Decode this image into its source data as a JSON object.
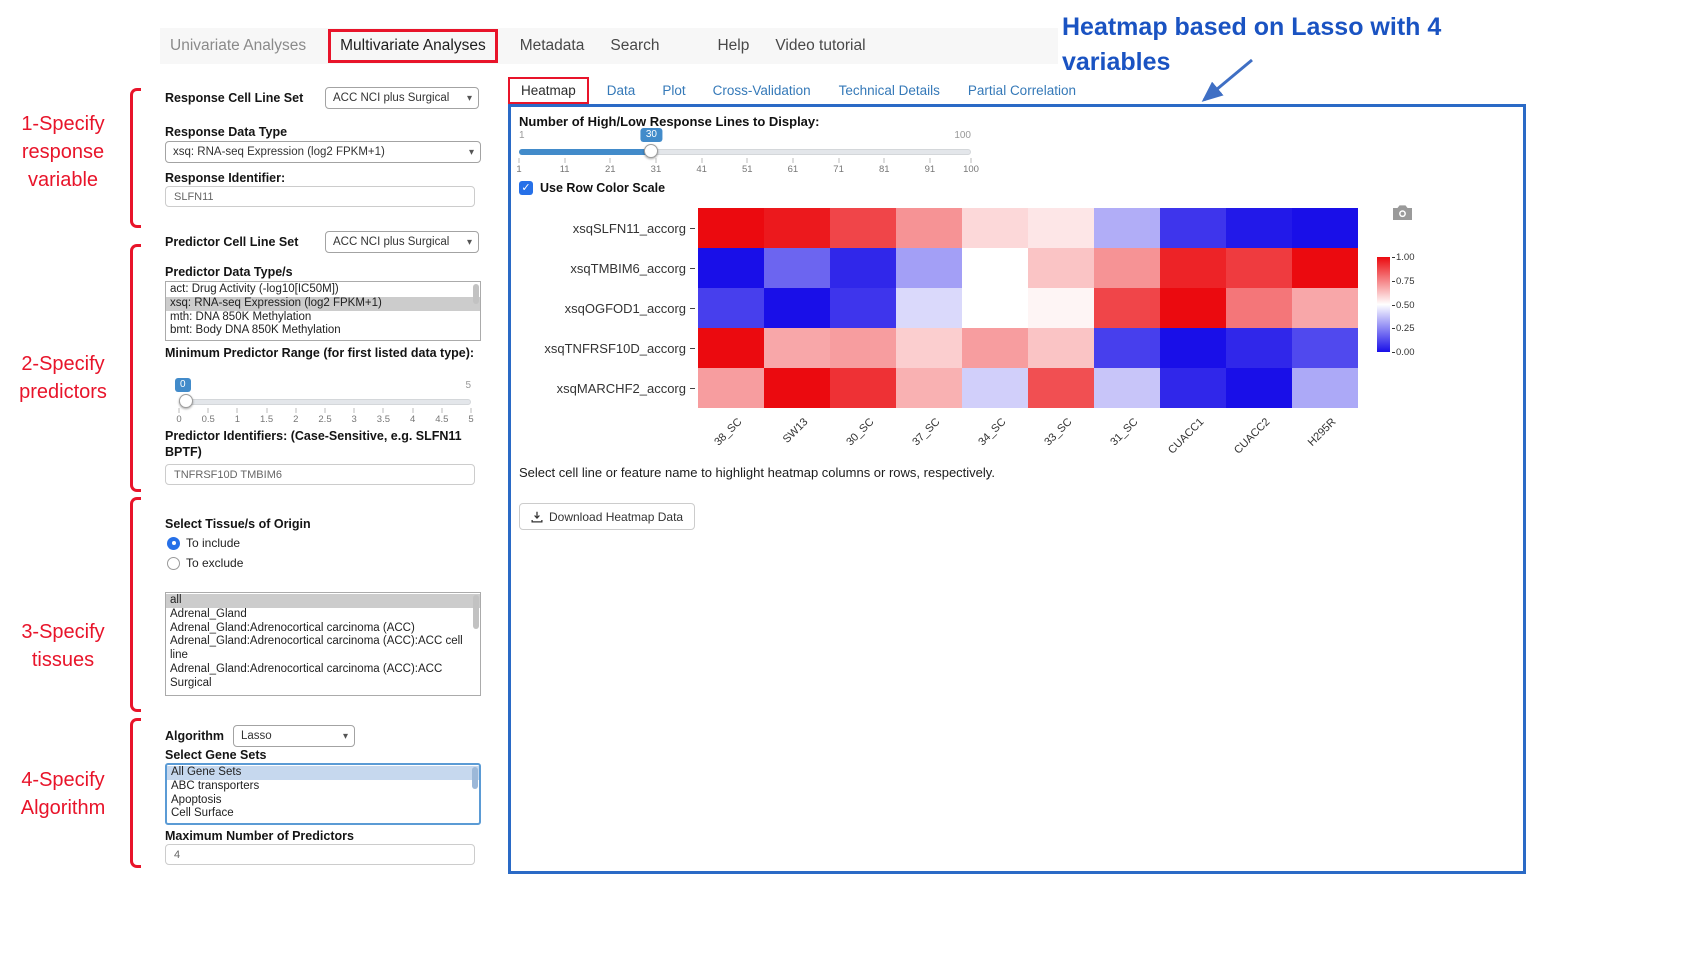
{
  "nav": {
    "items": [
      "Univariate Analyses",
      "Multivariate Analyses",
      "Metadata",
      "Search",
      "Help",
      "Video tutorial"
    ]
  },
  "sidebar": {
    "response_cell_line_set": {
      "label": "Response Cell Line Set",
      "value": "ACC NCI plus Surgical"
    },
    "response_data_type": {
      "label": "Response Data Type",
      "value": "xsq: RNA-seq Expression (log2 FPKM+1)"
    },
    "response_identifier": {
      "label": "Response Identifier:",
      "value": "SLFN11"
    },
    "predictor_cell_line_set": {
      "label": "Predictor Cell Line Set",
      "value": "ACC NCI plus Surgical"
    },
    "predictor_data_types": {
      "label": "Predictor Data Type/s",
      "options": [
        "act: Drug Activity (-log10[IC50M])",
        "xsq: RNA-seq Expression (log2 FPKM+1)",
        "mth: DNA 850K Methylation",
        "bmt: Body DNA 850K Methylation"
      ],
      "selected_index": 1
    },
    "min_predictor_range": {
      "label": "Minimum Predictor Range (for first listed data type):",
      "value": "0",
      "max_label": "5",
      "ticks": [
        "0",
        "0.5",
        "1",
        "1.5",
        "2",
        "2.5",
        "3",
        "3.5",
        "4",
        "4.5",
        "5"
      ]
    },
    "predictor_identifiers": {
      "label": "Predictor Identifiers: (Case-Sensitive, e.g. SLFN11 BPTF)",
      "value": "TNFRSF10D TMBIM6"
    },
    "tissue": {
      "label": "Select Tissue/s of Origin",
      "include_option": "To include",
      "exclude_option": "To exclude",
      "selected_radio": "To include",
      "options": [
        "all",
        "Adrenal_Gland",
        "Adrenal_Gland:Adrenocortical carcinoma (ACC)",
        "Adrenal_Gland:Adrenocortical carcinoma (ACC):ACC cell line",
        "Adrenal_Gland:Adrenocortical carcinoma (ACC):ACC Surgical"
      ],
      "selected_index": 0
    },
    "algorithm": {
      "label": "Algorithm",
      "value": "Lasso"
    },
    "gene_sets": {
      "label": "Select Gene Sets",
      "options": [
        "All Gene Sets",
        "ABC transporters",
        "Apoptosis",
        "Cell Surface"
      ],
      "selected_index": 0
    },
    "max_predictors": {
      "label": "Maximum Number of Predictors",
      "value": "4"
    }
  },
  "tabs": [
    "Heatmap",
    "Data",
    "Plot",
    "Cross-Validation",
    "Technical Details",
    "Partial Correlation"
  ],
  "main": {
    "slider": {
      "label": "Number of High/Low Response Lines to Display:",
      "min": "1",
      "max": "100",
      "value": "30",
      "ticks": [
        "1",
        "11",
        "21",
        "31",
        "41",
        "51",
        "61",
        "71",
        "81",
        "91",
        "100"
      ]
    },
    "row_color_scale_label": "Use Row Color Scale",
    "checkbox_checked": true,
    "hint": "Select cell line or feature name to highlight heatmap columns or rows, respectively.",
    "download_button": "Download Heatmap Data"
  },
  "chart_data": {
    "type": "heatmap",
    "rows": [
      "xsqSLFN11_accorg",
      "xsqTMBIM6_accorg",
      "xsqOGFOD1_accorg",
      "xsqTNFRSF10D_accorg",
      "xsqMARCHF2_accorg"
    ],
    "columns": [
      "38_SC",
      "SW13",
      "30_SC",
      "37_SC",
      "34_SC",
      "33_SC",
      "31_SC",
      "CUACC1",
      "CUACC2",
      "H295R"
    ],
    "values": [
      [
        1.0,
        0.97,
        0.88,
        0.72,
        0.58,
        0.55,
        0.33,
        0.08,
        0.02,
        0.0
      ],
      [
        0.0,
        0.18,
        0.05,
        0.3,
        0.5,
        0.62,
        0.72,
        0.95,
        0.9,
        1.0
      ],
      [
        0.1,
        0.0,
        0.08,
        0.42,
        0.5,
        0.52,
        0.88,
        1.0,
        0.78,
        0.68
      ],
      [
        1.0,
        0.68,
        0.7,
        0.6,
        0.7,
        0.62,
        0.1,
        0.0,
        0.05,
        0.12
      ],
      [
        0.7,
        1.0,
        0.92,
        0.66,
        0.4,
        0.86,
        0.38,
        0.05,
        0.0,
        0.32
      ]
    ],
    "value_range": [
      0,
      1
    ],
    "row_scale": true,
    "colorbar_ticks": [
      "1.00",
      "0.75",
      "0.50",
      "0.25",
      "0.00"
    ],
    "colors": {
      "high": "#eb0a0f",
      "mid": "#ffffff",
      "low": "#190fe8"
    }
  },
  "annotations": {
    "steps": [
      "1-Specify\nresponse\nvariable",
      "2-Specify\npredictors",
      "3-Specify\ntissues",
      "4-Specify\nAlgorithm"
    ],
    "heatmap_note": "Heatmap based on Lasso with 4 variables",
    "red": "#e8142a",
    "blue": "#1a53c2"
  }
}
